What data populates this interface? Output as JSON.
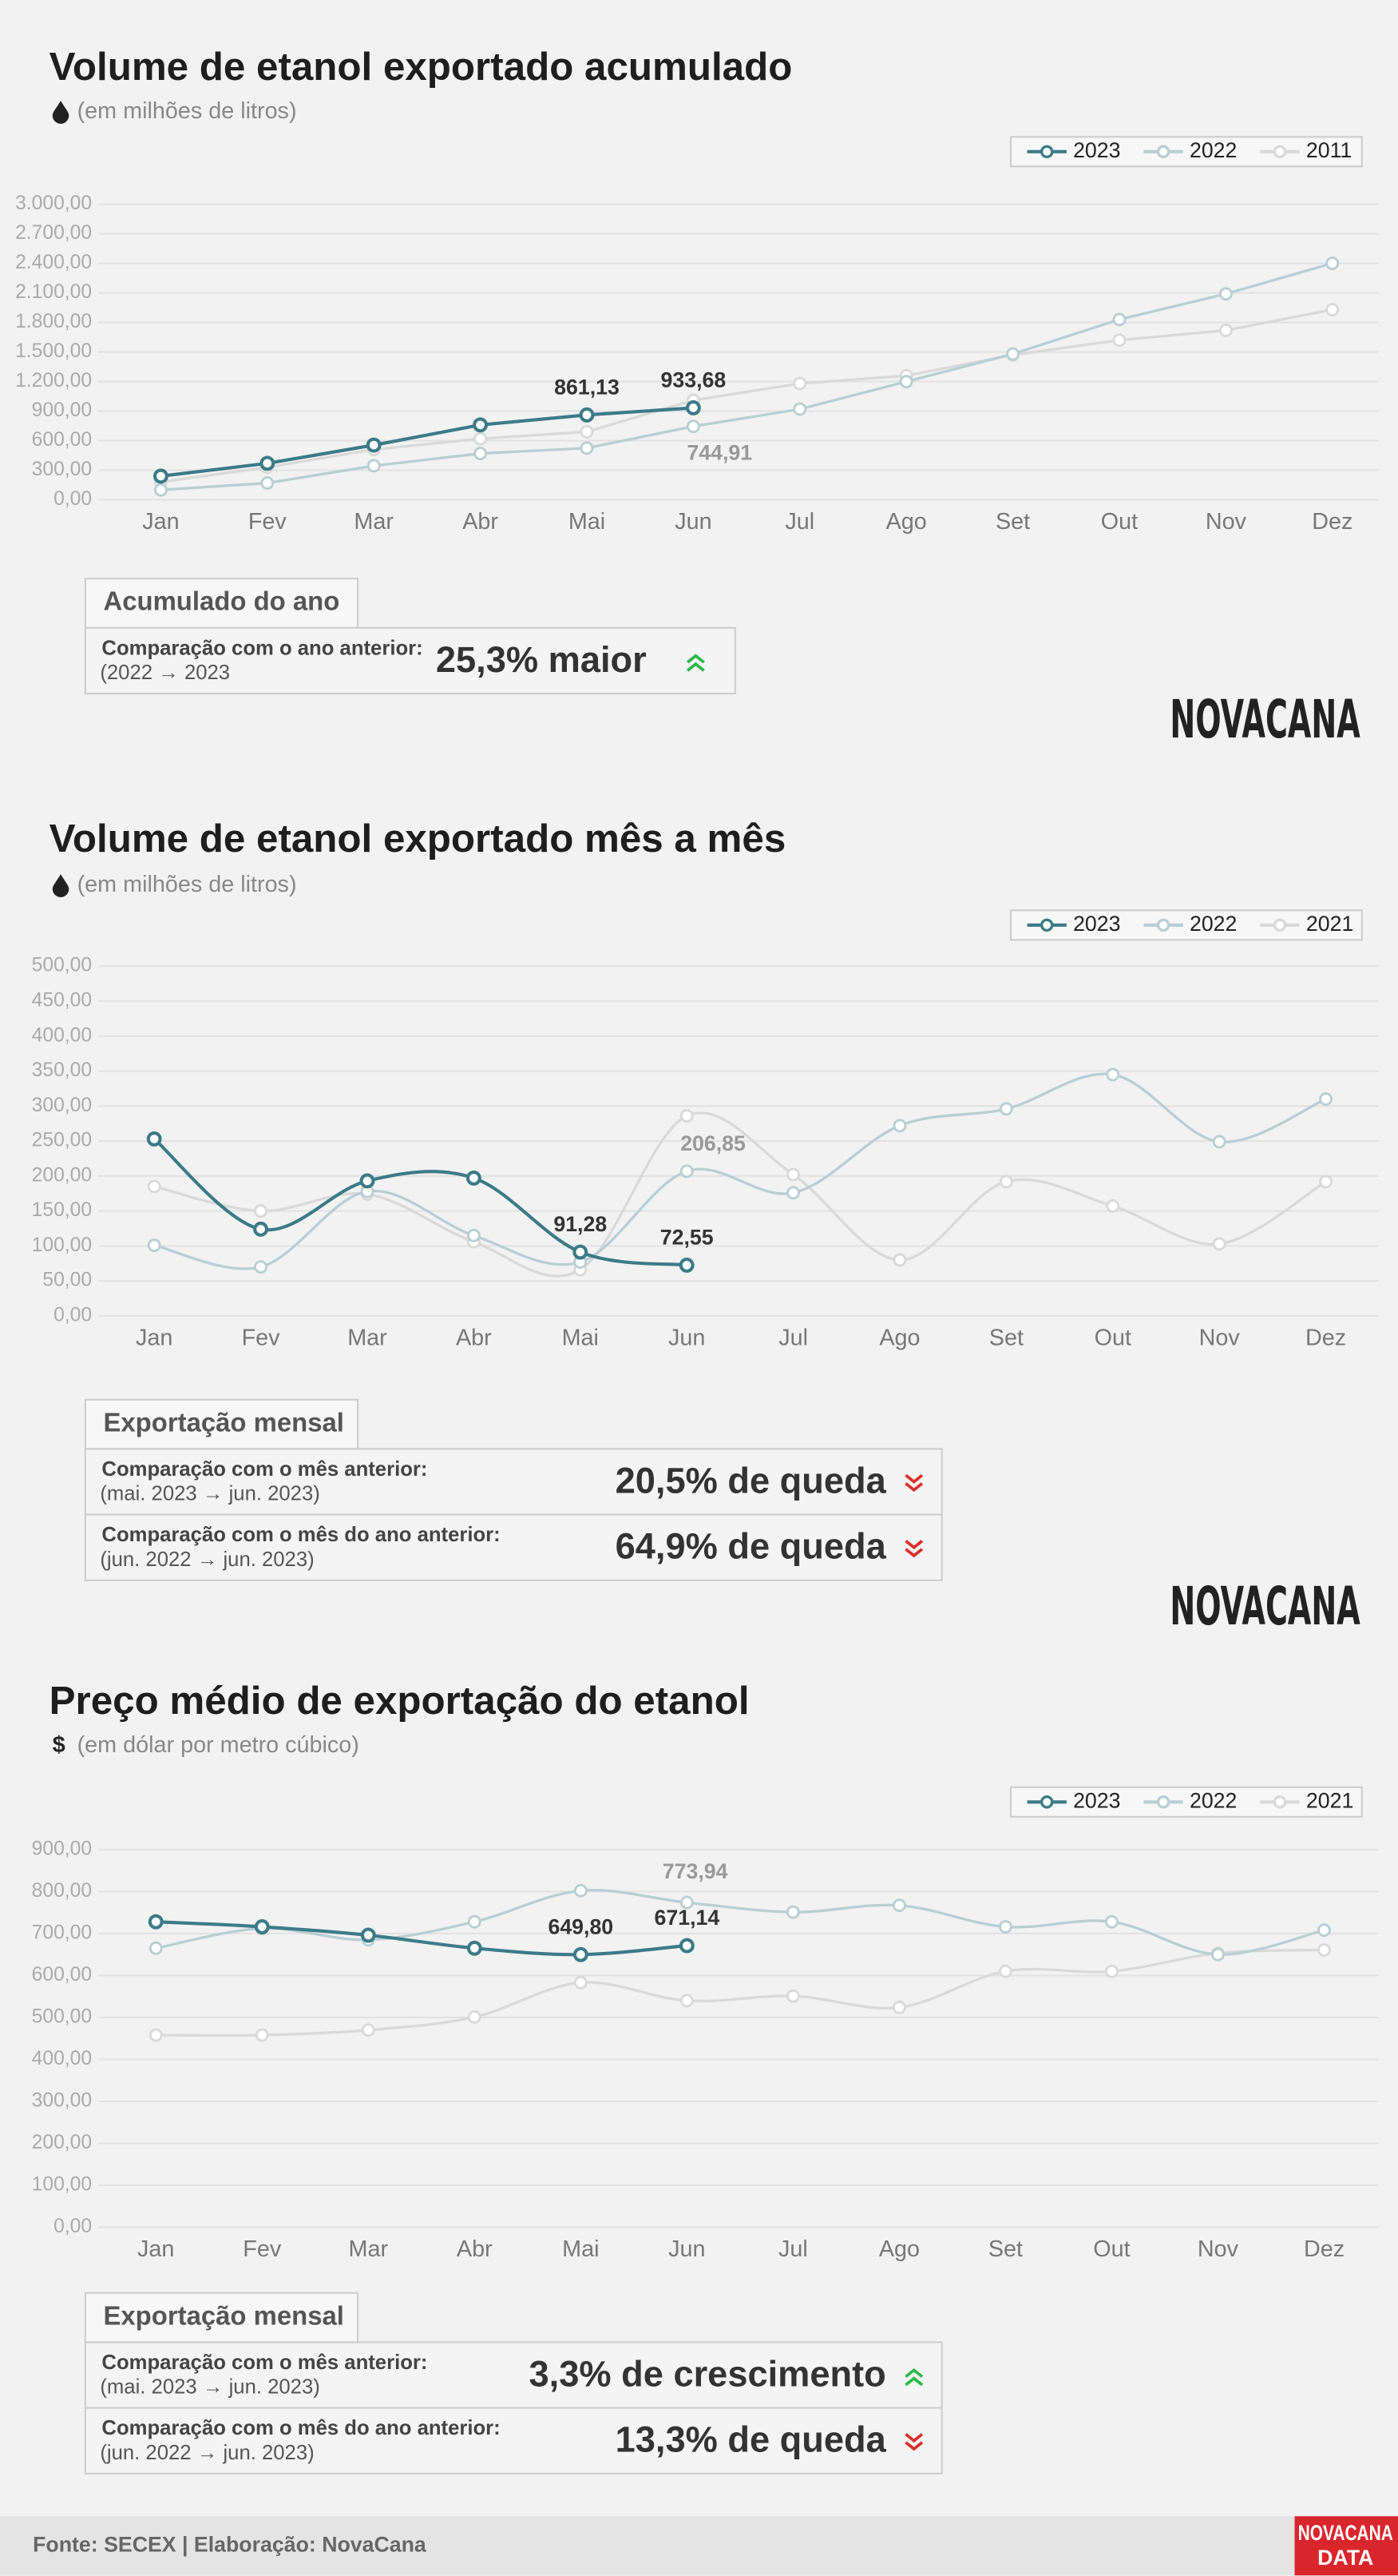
{
  "chart_data": [
    {
      "type": "line",
      "title": "Volume de etanol exportado acumulado",
      "subtitle": "(em milhões de litros)",
      "smooth": false,
      "legend": "top-right",
      "grid": true,
      "categories": [
        "Jan",
        "Fev",
        "Mar",
        "Abr",
        "Mai",
        "Jun",
        "Jul",
        "Ago",
        "Set",
        "Out",
        "Nov",
        "Dez"
      ],
      "ylim": [
        0,
        3000
      ],
      "yticks": [
        {
          "value": 0,
          "label": "0,00"
        },
        {
          "value": 300,
          "label": "300,00"
        },
        {
          "value": 600,
          "label": "600,00"
        },
        {
          "value": 900,
          "label": "900,00"
        },
        {
          "value": 1200,
          "label": "1.200,00"
        },
        {
          "value": 1500,
          "label": "1.500,00"
        },
        {
          "value": 1800,
          "label": "1.800,00"
        },
        {
          "value": 2100,
          "label": "2.100,00"
        },
        {
          "value": 2400,
          "label": "2.400,00"
        },
        {
          "value": 2700,
          "label": "2.700,00"
        },
        {
          "value": 3000,
          "label": "3.000,00"
        }
      ],
      "series": [
        {
          "name": "2023",
          "color": "#3d7a87",
          "values": [
            240,
            370,
            555,
            760,
            861.13,
            933.68,
            null,
            null,
            null,
            null,
            null,
            null
          ],
          "value_labels": [
            null,
            null,
            null,
            null,
            "861,13",
            "933,68",
            null,
            null,
            null,
            null,
            null,
            null
          ]
        },
        {
          "name": "2022",
          "color": "#b9ced4",
          "values": [
            100,
            170,
            345,
            470,
            525,
            744.91,
            920,
            1200,
            1480,
            1830,
            2090,
            2400
          ],
          "value_labels": [
            null,
            null,
            null,
            null,
            null,
            "744,91",
            null,
            null,
            null,
            null,
            null,
            null
          ]
        },
        {
          "name": "2011",
          "color": "#d9d9d9",
          "values": [
            180,
            330,
            510,
            620,
            690,
            1010,
            1180,
            1260,
            1470,
            1620,
            1720,
            1930
          ]
        }
      ]
    },
    {
      "type": "line",
      "title": "Volume de etanol exportado mês a mês",
      "subtitle": "(em milhões de litros)",
      "smooth": true,
      "legend": "top-right",
      "grid": true,
      "categories": [
        "Jan",
        "Fev",
        "Mar",
        "Abr",
        "Mai",
        "Jun",
        "Jul",
        "Ago",
        "Set",
        "Out",
        "Nov",
        "Dez"
      ],
      "ylim": [
        0,
        500
      ],
      "yticks": [
        {
          "value": 0,
          "label": "0,00"
        },
        {
          "value": 50,
          "label": "50,00"
        },
        {
          "value": 100,
          "label": "100,00"
        },
        {
          "value": 150,
          "label": "150,00"
        },
        {
          "value": 200,
          "label": "200,00"
        },
        {
          "value": 250,
          "label": "250,00"
        },
        {
          "value": 300,
          "label": "300,00"
        },
        {
          "value": 350,
          "label": "350,00"
        },
        {
          "value": 400,
          "label": "400,00"
        },
        {
          "value": 450,
          "label": "450,00"
        },
        {
          "value": 500,
          "label": "500,00"
        }
      ],
      "series": [
        {
          "name": "2023",
          "color": "#3d7a87",
          "values": [
            253,
            124,
            193,
            197,
            91.28,
            72.55,
            null,
            null,
            null,
            null,
            null,
            null
          ],
          "value_labels": [
            null,
            null,
            null,
            null,
            "91,28",
            "72,55",
            null,
            null,
            null,
            null,
            null,
            null
          ]
        },
        {
          "name": "2022",
          "color": "#b9ced4",
          "values": [
            101,
            70,
            178,
            115,
            77,
            206.85,
            176,
            272,
            296,
            345,
            249,
            310
          ],
          "value_labels": [
            null,
            null,
            null,
            null,
            null,
            "206,85",
            null,
            null,
            null,
            null,
            null,
            null
          ]
        },
        {
          "name": "2021",
          "color": "#d9d9d9",
          "values": [
            185,
            150,
            174,
            106,
            66,
            286,
            202,
            80,
            192,
            157,
            103,
            192
          ]
        }
      ]
    },
    {
      "type": "line",
      "title": "Preço médio de exportação do etanol",
      "icon": "$",
      "subtitle": "(em dólar por metro cúbico)",
      "smooth": true,
      "legend": "top-right",
      "grid": true,
      "categories": [
        "Jan",
        "Fev",
        "Mar",
        "Abr",
        "Mai",
        "Jun",
        "Jul",
        "Ago",
        "Set",
        "Out",
        "Nov",
        "Dez"
      ],
      "ylim": [
        0,
        900
      ],
      "yticks": [
        {
          "value": 0,
          "label": "0,00"
        },
        {
          "value": 100,
          "label": "100,00"
        },
        {
          "value": 200,
          "label": "200,00"
        },
        {
          "value": 300,
          "label": "300,00"
        },
        {
          "value": 400,
          "label": "400,00"
        },
        {
          "value": 500,
          "label": "500,00"
        },
        {
          "value": 600,
          "label": "600,00"
        },
        {
          "value": 700,
          "label": "700,00"
        },
        {
          "value": 800,
          "label": "800,00"
        },
        {
          "value": 900,
          "label": "900,00"
        }
      ],
      "series": [
        {
          "name": "2023",
          "color": "#3d7a87",
          "values": [
            728,
            716,
            696,
            665,
            649.8,
            671.14,
            null,
            null,
            null,
            null,
            null,
            null
          ],
          "value_labels": [
            null,
            null,
            null,
            null,
            "649,80",
            "671,14",
            null,
            null,
            null,
            null,
            null,
            null
          ]
        },
        {
          "name": "2022",
          "color": "#b9ced4",
          "values": [
            665,
            712,
            685,
            728,
            802,
            773.94,
            751,
            767,
            716,
            728,
            650,
            708
          ],
          "value_labels": [
            null,
            null,
            null,
            null,
            null,
            "773,94",
            null,
            null,
            null,
            null,
            null,
            null
          ]
        },
        {
          "name": "2021",
          "color": "#d9d9d9",
          "values": [
            458,
            458,
            470,
            501,
            583,
            540,
            551,
            524,
            610,
            610,
            653,
            661
          ]
        }
      ]
    }
  ],
  "panels": [
    {
      "title": "Acumulado do ano",
      "rows": [
        {
          "label": "Comparação com o ano anterior:",
          "detail": "(2022 → 2023",
          "result": "25,3% maior",
          "trend": "up"
        }
      ]
    },
    {
      "title": "Exportação mensal",
      "rows": [
        {
          "label": "Comparação com o mês anterior:",
          "detail": "(mai. 2023 → jun. 2023)",
          "result": "20,5% de queda",
          "trend": "down"
        },
        {
          "label": "Comparação com o mês do ano anterior:",
          "detail": "(jun. 2022 → jun. 2023)",
          "result": "64,9% de queda",
          "trend": "down"
        }
      ]
    },
    {
      "title": "Exportação mensal",
      "rows": [
        {
          "label": "Comparação com o mês anterior:",
          "detail": "(mai. 2023 → jun. 2023)",
          "result": "3,3% de crescimento",
          "trend": "up"
        },
        {
          "label": "Comparação com o mês do ano anterior:",
          "detail": "(jun. 2022 → jun. 2023)",
          "result": "13,3% de queda",
          "trend": "down"
        }
      ]
    }
  ],
  "logo": "NOVACANA",
  "footer": {
    "source": "Fonte: SECEX | Elaboração: NovaCana",
    "logo_top": "NOVACANA",
    "logo_bottom": "DATA"
  }
}
